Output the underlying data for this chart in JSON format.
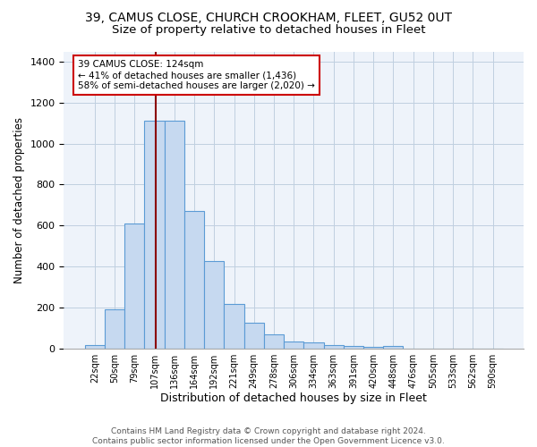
{
  "title1": "39, CAMUS CLOSE, CHURCH CROOKHAM, FLEET, GU52 0UT",
  "title2": "Size of property relative to detached houses in Fleet",
  "xlabel": "Distribution of detached houses by size in Fleet",
  "ylabel": "Number of detached properties",
  "footer": "Contains HM Land Registry data © Crown copyright and database right 2024.\nContains public sector information licensed under the Open Government Licence v3.0.",
  "categories": [
    "22sqm",
    "50sqm",
    "79sqm",
    "107sqm",
    "136sqm",
    "164sqm",
    "192sqm",
    "221sqm",
    "249sqm",
    "278sqm",
    "306sqm",
    "334sqm",
    "363sqm",
    "391sqm",
    "420sqm",
    "448sqm",
    "476sqm",
    "505sqm",
    "533sqm",
    "562sqm",
    "590sqm"
  ],
  "values": [
    15,
    190,
    610,
    1110,
    1110,
    670,
    425,
    215,
    125,
    70,
    32,
    30,
    15,
    12,
    7,
    12,
    0,
    0,
    0,
    0,
    0
  ],
  "bar_color": "#c6d9f0",
  "bar_edge_color": "#5b9bd5",
  "bg_color": "#eef3fa",
  "grid_color": "#c0cfe0",
  "annotation_text": "39 CAMUS CLOSE: 124sqm\n← 41% of detached houses are smaller (1,436)\n58% of semi-detached houses are larger (2,020) →",
  "annotation_box_edge": "#cc0000",
  "property_line_color": "#8b0000",
  "ylim": [
    0,
    1450
  ],
  "title1_fontsize": 10,
  "title2_fontsize": 9.5,
  "xlabel_fontsize": 9,
  "ylabel_fontsize": 8.5,
  "tick_fontsize": 7,
  "annotation_fontsize": 7.5,
  "footer_fontsize": 6.5
}
